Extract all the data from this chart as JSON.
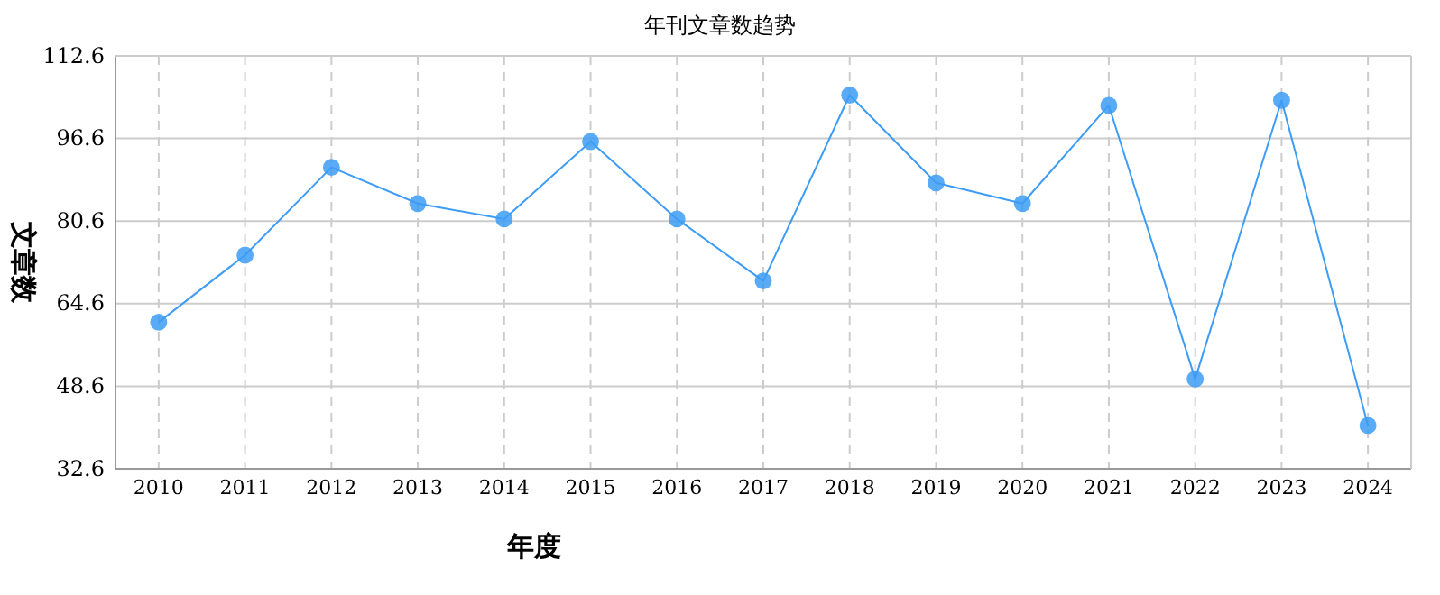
{
  "chart_data": {
    "type": "line",
    "title": "年刊文章数趋势",
    "xlabel": "年度",
    "ylabel": "文章数",
    "categories": [
      "2010",
      "2011",
      "2012",
      "2013",
      "2014",
      "2015",
      "2016",
      "2017",
      "2018",
      "2019",
      "2020",
      "2021",
      "2022",
      "2023",
      "2024"
    ],
    "series": [
      {
        "color": "#3d9cf5",
        "values": [
          61,
          74,
          91,
          84,
          81,
          96,
          81,
          69,
          105,
          88,
          84,
          103,
          50,
          104,
          41
        ]
      }
    ],
    "ylim": [
      32.6,
      112.6
    ],
    "yticks": [
      32.6,
      48.6,
      64.6,
      80.6,
      96.6,
      112.6
    ],
    "grid": true,
    "marker": "circle",
    "line_style": "solid"
  }
}
